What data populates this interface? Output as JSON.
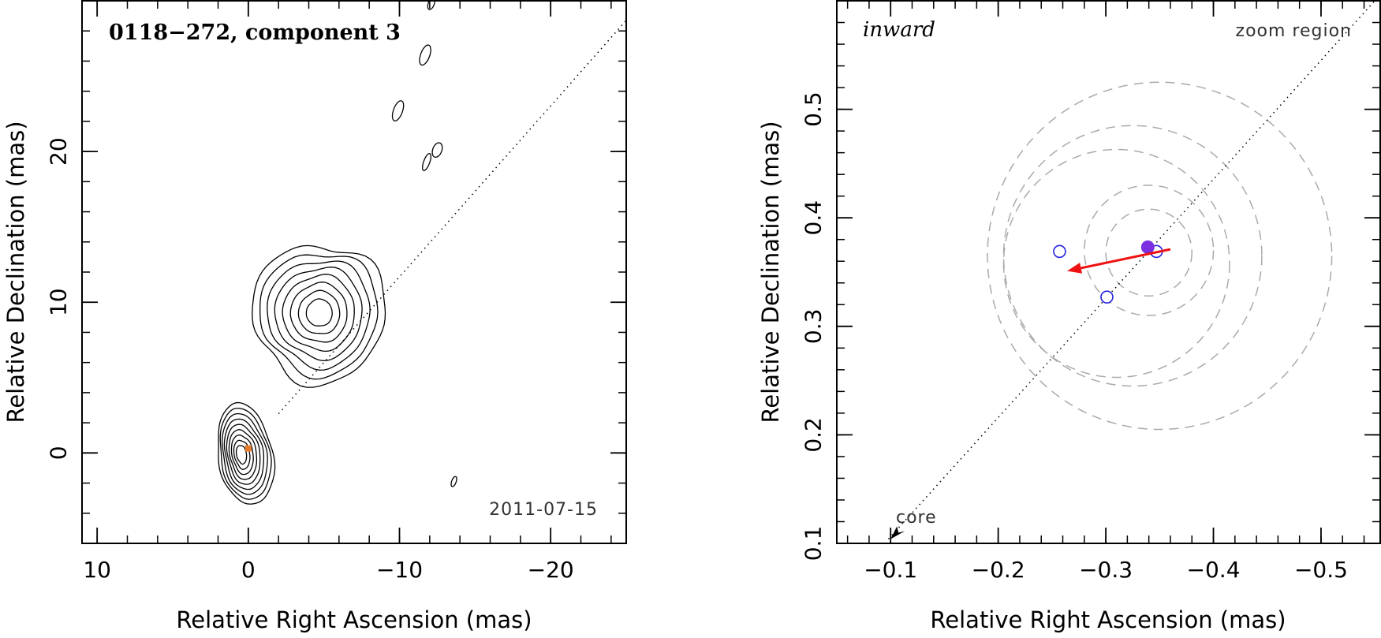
{
  "chart_data": [
    {
      "type": "contour",
      "title": "0118−272, component 3",
      "date": "2011-07-15",
      "xlabel": "Relative Right Ascension (mas)",
      "ylabel": "Relative Declination (mas)",
      "xlim": [
        11,
        -25
      ],
      "ylim": [
        -6,
        30
      ],
      "xticks": [
        10,
        0,
        -10,
        -20
      ],
      "xtick_labels": [
        "10",
        "0",
        "−10",
        "−20"
      ],
      "yticks": [
        0,
        10,
        20
      ],
      "ytick_labels": [
        "0",
        "10",
        "20"
      ],
      "direction_line": {
        "from": [
          -2,
          2.6
        ],
        "to": [
          -25,
          28.7
        ],
        "style": "dotted"
      },
      "core_marker": {
        "x": 0,
        "y": 0.3,
        "color": "#e87c2c"
      },
      "sources": [
        {
          "name": "core",
          "cx": 0.2,
          "cy": -0.1,
          "rx": 1.8,
          "ry": 3.4,
          "angle": -10,
          "levels": 9
        },
        {
          "name": "component 3",
          "cx": -4.7,
          "cy": 9.3,
          "rx": 4.4,
          "ry": 4.6,
          "angle": 0,
          "levels": 8
        }
      ],
      "small_contours": [
        {
          "cx": -11.7,
          "cy": 26.4,
          "rx": 0.3,
          "ry": 0.7
        },
        {
          "cx": -9.9,
          "cy": 22.7,
          "rx": 0.3,
          "ry": 0.7
        },
        {
          "cx": -11.8,
          "cy": 19.3,
          "rx": 0.2,
          "ry": 0.6
        },
        {
          "cx": -12.5,
          "cy": 20.1,
          "rx": 0.3,
          "ry": 0.5
        },
        {
          "cx": -12.1,
          "cy": 29.8,
          "rx": 0.2,
          "ry": 0.4
        },
        {
          "cx": -13.6,
          "cy": -1.9,
          "rx": 0.15,
          "ry": 0.35
        }
      ]
    },
    {
      "type": "scatter",
      "title": "inward",
      "label": "zoom region",
      "core_label": "core",
      "xlabel": "Relative Right Ascension (mas)",
      "ylabel": "Relative Declination (mas)",
      "xlim": [
        -0.05,
        -0.555
      ],
      "ylim": [
        0.1,
        0.6
      ],
      "xticks": [
        -0.1,
        -0.2,
        -0.3,
        -0.4,
        -0.5
      ],
      "xtick_labels": [
        "−0.1",
        "−0.2",
        "−0.3",
        "−0.4",
        "−0.5"
      ],
      "yticks": [
        0.1,
        0.2,
        0.3,
        0.4,
        0.5
      ],
      "ytick_labels": [
        "0.1",
        "0.2",
        "0.3",
        "0.4",
        "0.5"
      ],
      "direction_line": {
        "from": [
          -0.098,
          0.104
        ],
        "to": [
          -0.55,
          0.6
        ],
        "style": "dotted"
      },
      "core_arrow": {
        "x": -0.1,
        "y": 0.104,
        "color": "#000000"
      },
      "open_points": [
        {
          "x": -0.257,
          "y": 0.369
        },
        {
          "x": -0.301,
          "y": 0.327
        },
        {
          "x": -0.347,
          "y": 0.369
        }
      ],
      "open_point_color": "#2222dd",
      "filled_point": {
        "x": -0.339,
        "y": 0.373,
        "color": "#7b2fe0"
      },
      "motion_arrow": {
        "from": [
          -0.36,
          0.371
        ],
        "to": [
          -0.264,
          0.351
        ],
        "color": "#ee1111"
      },
      "circles": [
        {
          "cx": -0.34,
          "cy": 0.368,
          "r": 0.04
        },
        {
          "cx": -0.34,
          "cy": 0.37,
          "r": 0.06
        },
        {
          "cx": -0.31,
          "cy": 0.358,
          "r": 0.105
        },
        {
          "cx": -0.325,
          "cy": 0.365,
          "r": 0.12
        },
        {
          "cx": -0.35,
          "cy": 0.365,
          "r": 0.16
        }
      ],
      "circle_color": "#aaaaaa"
    }
  ]
}
